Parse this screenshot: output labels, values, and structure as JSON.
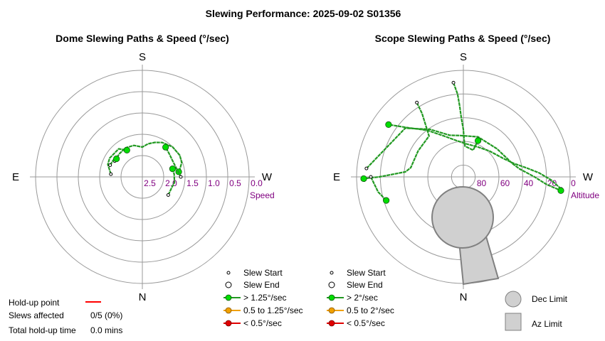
{
  "title": "Slewing Performance: 2025-09-02 S01356",
  "chart_data": [
    {
      "type": "polar",
      "title": "Dome Slewing Paths & Speed (°/sec)",
      "compass": {
        "top": "S",
        "bottom": "N",
        "left": "E",
        "right": "W"
      },
      "radial_axis_label": "Speed",
      "radial_ticks": [
        "2.5",
        "2.0",
        "1.5",
        "1.0",
        "0.5",
        "0.0"
      ],
      "radial_range": [
        2.5,
        0.0
      ],
      "slews": [
        {
          "speed_band": "> 1.25°/sec",
          "path": [
            [
              120,
              2.19
            ],
            [
              135,
              2.17
            ],
            [
              150,
              2.14
            ],
            [
              165,
              2.17
            ],
            [
              180,
              2.25
            ],
            [
              190,
              2.14
            ],
            [
              200,
              2.05
            ],
            [
              210,
              1.96
            ],
            [
              225,
              1.88
            ],
            [
              240,
              1.86
            ],
            [
              250,
              1.9
            ],
            [
              260,
              2.02
            ],
            [
              262,
              2.05
            ]
          ]
        },
        {
          "speed_band": "> 1.25°/sec",
          "path": [
            [
              95,
              2.2
            ],
            [
              110,
              2.05
            ],
            [
              120,
              2.02
            ],
            [
              140,
              2.05
            ],
            [
              150,
              2.22
            ]
          ]
        },
        {
          "speed_band": "> 1.25°/sec",
          "path": [
            [
              110,
              2.12
            ],
            [
              120,
              2.14
            ],
            [
              125,
              2.2
            ]
          ]
        },
        {
          "speed_band": "> 1.25°/sec",
          "path": [
            [
              270,
              2.0
            ],
            [
              255,
              2.1
            ],
            [
              240,
              2.12
            ],
            [
              230,
              2.09
            ],
            [
              218,
              2.02
            ]
          ]
        },
        {
          "speed_band": "> 1.25°/sec",
          "path": [
            [
              305,
              2.2
            ],
            [
              290,
              2.21
            ],
            [
              280,
              2.17
            ],
            [
              265,
              2.19
            ],
            [
              255,
              2.21
            ]
          ]
        }
      ],
      "legend": [
        {
          "symbol": "slew-start",
          "label": "Slew Start"
        },
        {
          "symbol": "slew-end",
          "label": "Slew End"
        },
        {
          "symbol": "green",
          "label": "> 1.25°/sec",
          "color": "#00cc00"
        },
        {
          "symbol": "orange",
          "label": "0.5 to 1.25°/sec",
          "color": "#f0a000"
        },
        {
          "symbol": "red",
          "label": "< 0.5°/sec",
          "color": "#e00000"
        }
      ]
    },
    {
      "type": "polar",
      "title": "Scope Slewing Paths & Speed (°/sec)",
      "compass": {
        "top": "S",
        "bottom": "N",
        "left": "E",
        "right": "W"
      },
      "radial_axis_label": "Altitude",
      "radial_ticks": [
        "80",
        "60",
        "40",
        "20",
        "0"
      ],
      "radial_range": [
        90,
        0
      ],
      "slews": [
        {
          "speed_band": "> 2°/sec",
          "path": [
            [
              277,
              7
            ],
            [
              272,
              16
            ],
            [
              267,
              26
            ],
            [
              262,
              36
            ],
            [
              255,
              46
            ],
            [
              245,
              53
            ],
            [
              225,
              59
            ],
            [
              205,
              62
            ],
            [
              185,
              62
            ],
            [
              170,
              59
            ],
            [
              155,
              52
            ],
            [
              142,
              40
            ],
            [
              132,
              28
            ],
            [
              125,
              13
            ]
          ]
        },
        {
          "speed_band": "> 2°/sec",
          "path": [
            [
              148,
              16
            ],
            [
              147,
              26
            ],
            [
              144,
              36
            ],
            [
              140,
              45
            ],
            [
              120,
              46
            ],
            [
              100,
              45
            ],
            [
              95,
              41
            ],
            [
              92,
              30
            ],
            [
              90,
              19
            ],
            [
              89,
              6
            ]
          ]
        },
        {
          "speed_band": "> 2°/sec",
          "path": [
            [
              95,
              8
            ],
            [
              130,
              26
            ],
            [
              145,
              41
            ],
            [
              162,
              53
            ],
            [
              176,
              55
            ],
            [
              200,
              54
            ],
            [
              230,
              53
            ],
            [
              255,
              47
            ],
            [
              262,
              42
            ],
            [
              270,
              30
            ],
            [
              275,
              20
            ],
            [
              278,
              7
            ]
          ]
        },
        {
          "speed_band": "> 2°/sec",
          "path": [
            [
              174,
              10
            ],
            [
              176,
              20
            ],
            [
              177,
              30
            ],
            [
              178,
              40
            ],
            [
              180,
              50
            ],
            [
              181,
              58
            ],
            [
              183,
              64
            ],
            [
              200,
              66
            ],
            [
              202,
              57
            ]
          ]
        },
        {
          "speed_band": "> 2°/sec",
          "path": [
            [
              90,
              12
            ],
            [
              80,
              17
            ],
            [
              73,
              22
            ]
          ]
        }
      ],
      "limits": [
        {
          "label": "Dec Limit",
          "color": "#d0d0d0"
        },
        {
          "label": "Az Limit",
          "color": "#d0d0d0"
        }
      ],
      "legend": [
        {
          "symbol": "slew-start",
          "label": "Slew Start"
        },
        {
          "symbol": "slew-end",
          "label": "Slew End"
        },
        {
          "symbol": "green",
          "label": "> 2°/sec",
          "color": "#00cc00"
        },
        {
          "symbol": "orange",
          "label": "0.5 to 2°/sec",
          "color": "#f0a000"
        },
        {
          "symbol": "red",
          "label": "< 0.5°/sec",
          "color": "#e00000"
        }
      ]
    }
  ],
  "holdup": {
    "point_label": "Hold-up point",
    "point_color": "#ff0000",
    "slews_label": "Slews affected",
    "slews_value": "0/5 (0%)",
    "time_label": "Total hold-up time",
    "time_value": "0.0 mins"
  },
  "colors": {
    "path": "#229922",
    "marker": "#00dd00",
    "grid": "#999999",
    "axis_label": "#800080",
    "limit_fill": "#d0d0d0",
    "limit_stroke": "#808080"
  }
}
